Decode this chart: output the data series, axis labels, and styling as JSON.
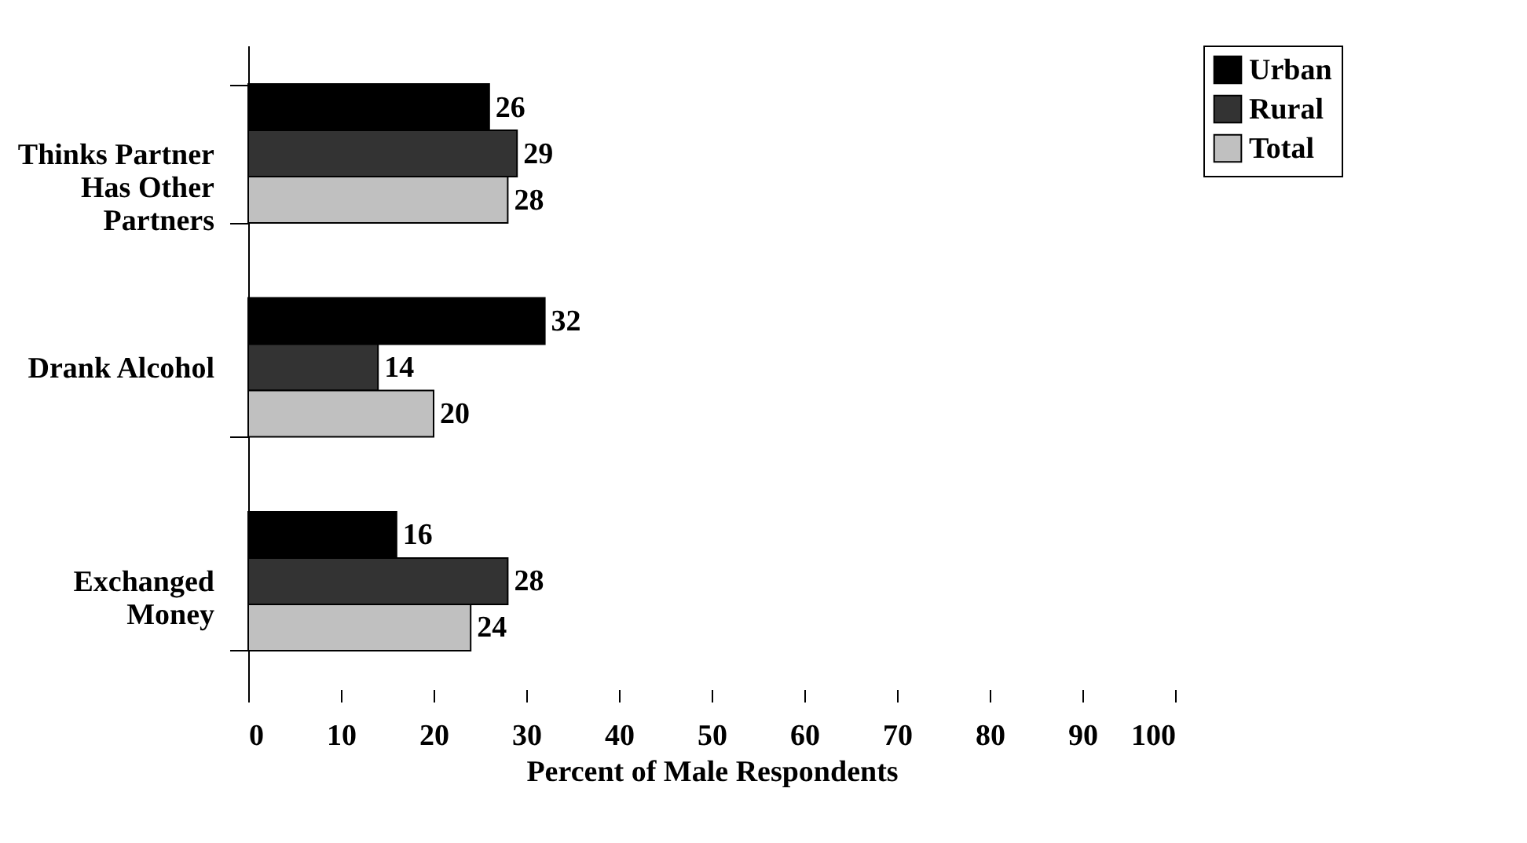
{
  "chart_data": {
    "type": "bar",
    "orientation": "horizontal",
    "xlabel": "Percent of Male Respondents",
    "categories": [
      "Thinks Partner Has Other Partners",
      "Drank Alcohol",
      "Exchanged Money"
    ],
    "series": [
      {
        "name": "Urban",
        "color": "#000000",
        "values": [
          26,
          32,
          16
        ]
      },
      {
        "name": "Rural",
        "color": "#333333",
        "values": [
          29,
          14,
          28
        ]
      },
      {
        "name": "Total",
        "color": "#c0c0c0",
        "values": [
          28,
          20,
          24
        ]
      }
    ],
    "xlim": [
      0,
      100
    ],
    "xticks": [
      0,
      10,
      20,
      30,
      40,
      50,
      60,
      70,
      80,
      90,
      100
    ],
    "grid": false,
    "legend": "right",
    "data_labels": true
  }
}
